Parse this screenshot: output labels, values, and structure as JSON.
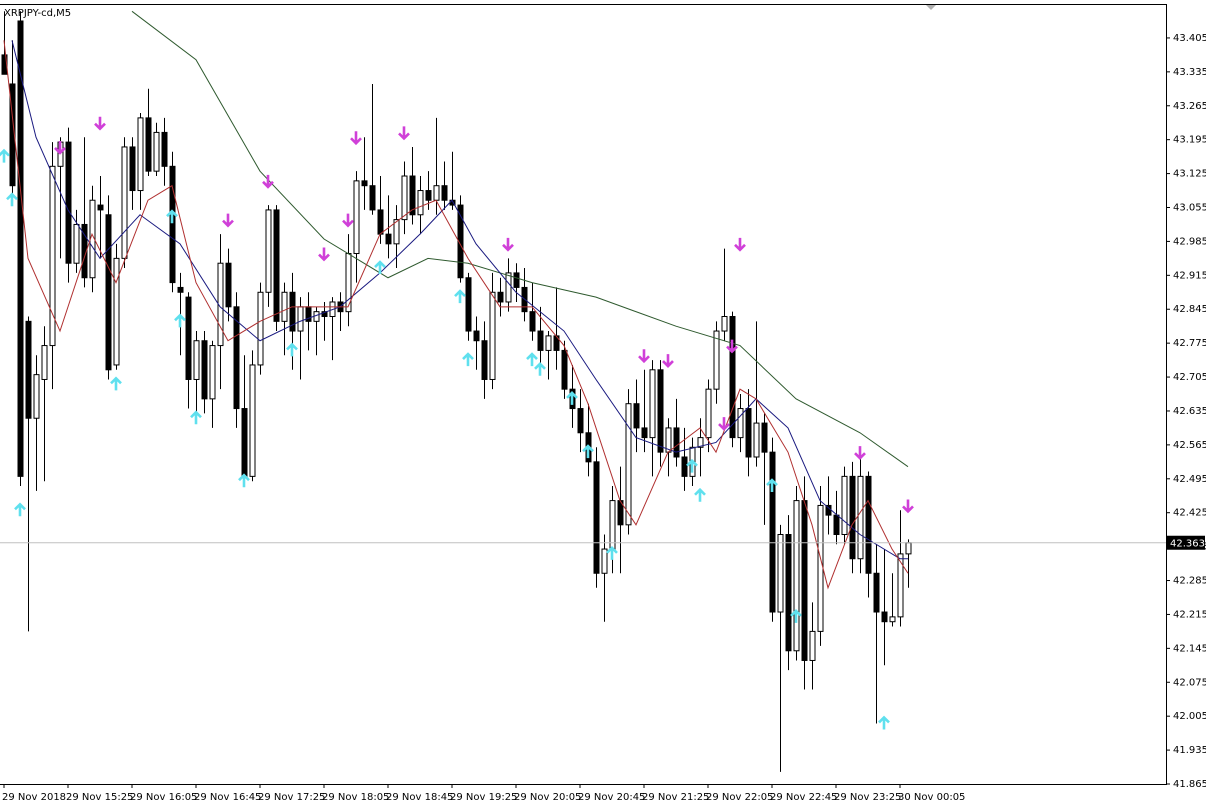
{
  "chart_data": {
    "type": "candlestick",
    "title": "XRPJPY-cd,M5",
    "categories": [
      "29 Nov 2018",
      null,
      null,
      null,
      null,
      null,
      null,
      null,
      "29 Nov 15:25",
      null,
      null,
      null,
      null,
      null,
      null,
      null,
      "29 Nov 16:05",
      null,
      null,
      null,
      null,
      null,
      null,
      null,
      "29 Nov 16:45",
      null,
      null,
      null,
      null,
      null,
      null,
      null,
      "29 Nov 17:25",
      null,
      null,
      null,
      null,
      null,
      null,
      null,
      "29 Nov 18:05",
      null,
      null,
      null,
      null,
      null,
      null,
      null,
      "29 Nov 18:45",
      null,
      null,
      null,
      null,
      null,
      null,
      null,
      "29 Nov 19:25",
      null,
      null,
      null,
      null,
      null,
      null,
      null,
      "29 Nov 20:05",
      null,
      null,
      null,
      null,
      null,
      null,
      null,
      "29 Nov 20:45",
      null,
      null,
      null,
      null,
      null,
      null,
      null,
      "29 Nov 21:25",
      null,
      null,
      null,
      null,
      null,
      null,
      null,
      "29 Nov 22:05",
      null,
      null,
      null,
      null,
      null,
      null,
      null,
      "29 Nov 22:45",
      null,
      null,
      null,
      null,
      null,
      null,
      null,
      "29 Nov 23:25",
      null,
      null,
      null,
      null,
      null,
      null,
      null,
      "30 Nov 00:05",
      null
    ],
    "open": [
      43.37,
      43.31,
      43.44,
      42.82,
      42.62,
      42.7,
      42.77,
      43.14,
      43.19,
      42.94,
      43.02,
      42.91,
      43.06,
      43.04,
      42.73,
      42.95,
      43.18,
      43.09,
      43.24,
      43.13,
      43.21,
      43.14,
      42.89,
      42.87,
      42.7,
      42.78,
      42.66,
      42.77,
      42.94,
      42.85,
      42.64,
      42.5,
      42.73,
      42.88,
      43.05,
      42.82,
      42.88,
      42.8,
      42.85,
      42.82,
      42.84,
      42.83,
      42.86,
      42.84,
      42.96,
      43.11,
      43.1,
      43.05,
      43.0,
      42.98,
      43.03,
      43.12,
      43.04,
      43.09,
      43.07,
      43.1,
      43.07,
      43.06,
      42.91,
      42.8,
      42.78,
      42.7,
      42.88,
      42.86,
      42.92,
      42.89,
      42.84,
      42.8,
      42.76,
      42.79,
      42.76,
      42.68,
      42.64,
      42.59,
      42.53,
      42.3,
      42.35,
      42.45,
      42.4,
      42.65,
      42.6,
      42.58,
      42.72,
      42.55,
      42.6,
      42.54,
      42.5,
      42.56,
      42.58,
      42.68,
      42.8,
      42.83,
      42.58,
      42.64,
      42.54,
      42.61,
      42.55,
      42.22,
      42.38,
      42.14,
      42.45,
      42.12,
      42.18,
      42.44,
      42.42,
      42.38,
      42.5,
      42.33,
      42.5,
      42.3,
      42.22,
      42.2,
      42.21,
      42.34
    ],
    "high": [
      43.46,
      43.4,
      43.46,
      42.83,
      42.75,
      42.81,
      43.19,
      43.2,
      43.22,
      43.05,
      43.2,
      43.1,
      43.12,
      43.08,
      42.98,
      43.2,
      43.2,
      43.25,
      43.3,
      43.23,
      43.24,
      43.17,
      42.92,
      42.88,
      42.8,
      42.8,
      42.78,
      43.0,
      42.97,
      42.88,
      42.75,
      42.76,
      42.9,
      43.06,
      43.06,
      42.9,
      42.92,
      42.87,
      42.88,
      42.85,
      42.86,
      42.87,
      42.88,
      43.0,
      43.13,
      43.2,
      43.31,
      43.12,
      43.08,
      43.06,
      43.15,
      43.18,
      43.12,
      43.13,
      43.24,
      43.15,
      43.17,
      43.08,
      42.92,
      42.83,
      42.82,
      42.92,
      42.91,
      42.95,
      42.94,
      42.93,
      42.9,
      42.85,
      42.8,
      42.89,
      42.78,
      42.73,
      42.68,
      42.65,
      42.56,
      42.38,
      42.48,
      42.52,
      42.68,
      42.7,
      42.72,
      42.74,
      42.74,
      42.62,
      42.66,
      42.6,
      42.58,
      42.62,
      42.7,
      42.82,
      42.97,
      42.84,
      42.67,
      42.68,
      42.82,
      42.63,
      42.58,
      42.4,
      42.42,
      42.48,
      42.5,
      42.24,
      42.48,
      42.5,
      42.47,
      42.52,
      42.53,
      42.55,
      42.51,
      42.36,
      42.35,
      42.3,
      42.43,
      42.37
    ],
    "low": [
      43.33,
      43.08,
      42.48,
      42.18,
      42.47,
      42.49,
      42.68,
      42.95,
      42.9,
      42.92,
      42.89,
      42.88,
      42.95,
      42.7,
      42.72,
      42.93,
      43.05,
      43.05,
      43.12,
      43.12,
      43.1,
      42.88,
      42.75,
      42.64,
      42.63,
      42.63,
      42.6,
      42.68,
      42.82,
      42.6,
      42.48,
      42.49,
      42.71,
      42.85,
      42.8,
      42.75,
      42.72,
      42.7,
      42.76,
      42.75,
      42.78,
      42.74,
      42.8,
      42.81,
      42.9,
      43.05,
      43.04,
      42.98,
      42.95,
      42.93,
      43.0,
      43.02,
      43.0,
      43.05,
      43.04,
      43.05,
      43.05,
      42.9,
      42.78,
      42.72,
      42.66,
      42.68,
      42.83,
      42.84,
      42.86,
      42.82,
      42.78,
      42.72,
      42.7,
      42.72,
      42.66,
      42.6,
      42.55,
      42.5,
      42.27,
      42.2,
      42.3,
      42.3,
      42.38,
      42.55,
      42.55,
      42.5,
      42.52,
      42.5,
      42.52,
      42.47,
      42.48,
      42.5,
      42.55,
      42.65,
      42.78,
      42.56,
      42.55,
      42.5,
      42.52,
      42.4,
      42.2,
      41.89,
      42.1,
      42.12,
      42.06,
      42.06,
      42.15,
      42.38,
      42.36,
      42.36,
      42.3,
      42.3,
      42.25,
      41.99,
      42.11,
      42.19,
      42.19,
      42.27
    ],
    "close": [
      43.33,
      43.1,
      42.5,
      42.62,
      42.71,
      42.77,
      43.14,
      43.19,
      42.94,
      43.02,
      42.91,
      43.07,
      43.05,
      42.72,
      42.95,
      43.18,
      43.09,
      43.24,
      43.13,
      43.21,
      43.14,
      42.9,
      42.88,
      42.7,
      42.78,
      42.66,
      42.77,
      42.94,
      42.85,
      42.64,
      42.5,
      42.73,
      42.88,
      43.05,
      42.82,
      42.88,
      42.8,
      42.85,
      42.82,
      42.84,
      42.83,
      42.86,
      42.84,
      42.96,
      43.11,
      43.1,
      43.05,
      43.0,
      42.98,
      43.03,
      43.12,
      43.04,
      43.09,
      43.07,
      43.1,
      43.07,
      43.06,
      42.91,
      42.8,
      42.78,
      42.7,
      42.88,
      42.86,
      42.92,
      42.89,
      42.84,
      42.8,
      42.76,
      42.79,
      42.76,
      42.68,
      42.64,
      42.59,
      42.53,
      42.3,
      42.35,
      42.45,
      42.4,
      42.65,
      42.6,
      42.58,
      42.72,
      42.55,
      42.6,
      42.54,
      42.5,
      42.56,
      42.58,
      42.68,
      42.8,
      42.83,
      42.58,
      42.64,
      42.54,
      42.61,
      42.55,
      42.22,
      42.38,
      42.14,
      42.45,
      42.12,
      42.18,
      42.44,
      42.42,
      42.38,
      42.5,
      42.33,
      42.5,
      42.3,
      42.22,
      42.2,
      42.21,
      42.34,
      42.363
    ],
    "up_color": "#ffffff",
    "down_color": "#000000",
    "lines": [
      {
        "color": "#2f5a2f",
        "x": [
          16,
          24,
          32,
          40,
          48,
          53,
          58,
          66,
          74,
          84,
          92,
          99,
          107,
          113
        ],
        "values": [
          43.46,
          43.36,
          43.13,
          42.99,
          42.91,
          42.95,
          42.94,
          42.9,
          42.87,
          42.81,
          42.77,
          42.66,
          42.59,
          42.52
        ]
      },
      {
        "color": "#1a1a80",
        "x": [
          1,
          4,
          8,
          12,
          17,
          22,
          27,
          32,
          37,
          42,
          47,
          52,
          56,
          59,
          64,
          70,
          74,
          79,
          84,
          89,
          94,
          98,
          102,
          107,
          112,
          113
        ],
        "values": [
          43.4,
          43.2,
          43.05,
          42.95,
          43.04,
          42.98,
          42.85,
          42.78,
          42.82,
          42.85,
          42.92,
          43.0,
          43.07,
          42.98,
          42.88,
          42.8,
          42.7,
          42.58,
          42.55,
          42.57,
          42.66,
          42.6,
          42.45,
          42.38,
          42.33,
          42.33
        ]
      },
      {
        "color": "#b03030",
        "x": [
          0,
          3,
          7,
          11,
          14,
          18,
          21,
          24,
          28,
          32,
          36,
          40,
          43,
          47,
          51,
          54,
          58,
          62,
          66,
          70,
          73,
          77,
          79,
          83,
          87,
          89,
          92,
          94,
          98,
          101,
          103,
          106,
          108,
          111,
          113
        ],
        "values": [
          43.4,
          42.95,
          42.8,
          43.0,
          42.9,
          43.07,
          43.1,
          42.9,
          42.78,
          42.82,
          42.85,
          42.85,
          42.85,
          43.0,
          43.05,
          43.07,
          42.95,
          42.85,
          42.85,
          42.77,
          42.65,
          42.45,
          42.4,
          42.55,
          42.6,
          42.55,
          42.68,
          42.66,
          42.55,
          42.4,
          42.27,
          42.4,
          42.45,
          42.35,
          42.3
        ]
      }
    ],
    "arrows_down": {
      "color": "#d040d8",
      "x": [
        7,
        12,
        28,
        33,
        40,
        43,
        44,
        50,
        63,
        80,
        83,
        90,
        91,
        92,
        107,
        113
      ],
      "values": [
        43.18,
        43.23,
        43.03,
        43.11,
        42.96,
        43.03,
        43.2,
        43.21,
        42.98,
        42.75,
        42.74,
        42.61,
        42.77,
        42.98,
        42.55,
        42.44
      ]
    },
    "arrows_up": {
      "color": "#5fe0ee",
      "x": [
        0,
        1,
        2,
        14,
        21,
        22,
        24,
        30,
        36,
        47,
        57,
        58,
        66,
        67,
        71,
        73,
        76,
        86,
        87,
        96,
        99,
        110
      ],
      "values": [
        43.16,
        43.07,
        42.43,
        42.69,
        43.035,
        42.82,
        42.62,
        42.49,
        42.76,
        42.93,
        42.87,
        42.74,
        42.74,
        42.72,
        42.66,
        42.55,
        42.34,
        42.52,
        42.46,
        42.48,
        42.21,
        41.99
      ]
    },
    "last_price": 42.363,
    "ylim": [
      41.865,
      43.473
    ],
    "yticks": [
      43.405,
      43.335,
      43.265,
      43.195,
      43.125,
      43.055,
      42.985,
      42.915,
      42.845,
      42.775,
      42.705,
      42.635,
      42.565,
      42.495,
      42.425,
      42.355,
      42.285,
      42.215,
      42.145,
      42.075,
      42.005,
      41.935,
      41.865
    ]
  }
}
